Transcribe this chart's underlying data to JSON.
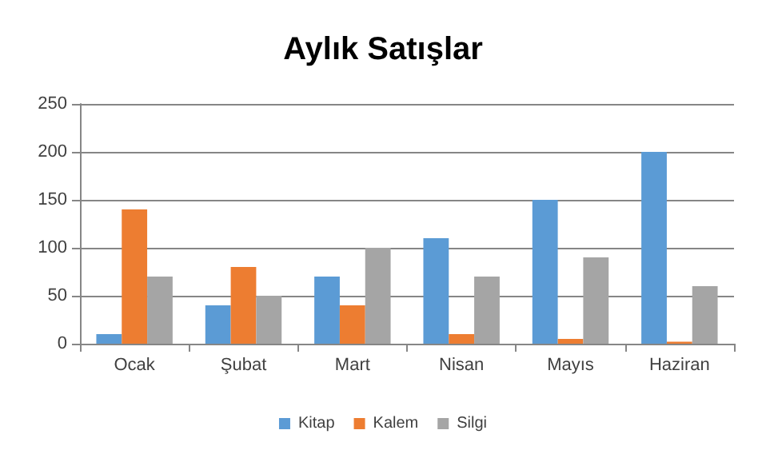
{
  "chart_data": {
    "type": "bar",
    "title": "Aylık Satışlar",
    "categories": [
      "Ocak",
      "Şubat",
      "Mart",
      "Nisan",
      "Mayıs",
      "Haziran"
    ],
    "series": [
      {
        "name": "Kitap",
        "color": "#5b9bd5",
        "values": [
          10,
          40,
          70,
          110,
          150,
          200
        ]
      },
      {
        "name": "Kalem",
        "color": "#ed7d31",
        "values": [
          140,
          80,
          40,
          10,
          5,
          2
        ]
      },
      {
        "name": "Silgi",
        "color": "#a5a5a5",
        "values": [
          70,
          50,
          100,
          70,
          90,
          60
        ]
      }
    ],
    "ylim": [
      0,
      250
    ],
    "yticks": [
      0,
      50,
      100,
      150,
      200,
      250
    ],
    "grid": "y",
    "legend": "bottom"
  }
}
